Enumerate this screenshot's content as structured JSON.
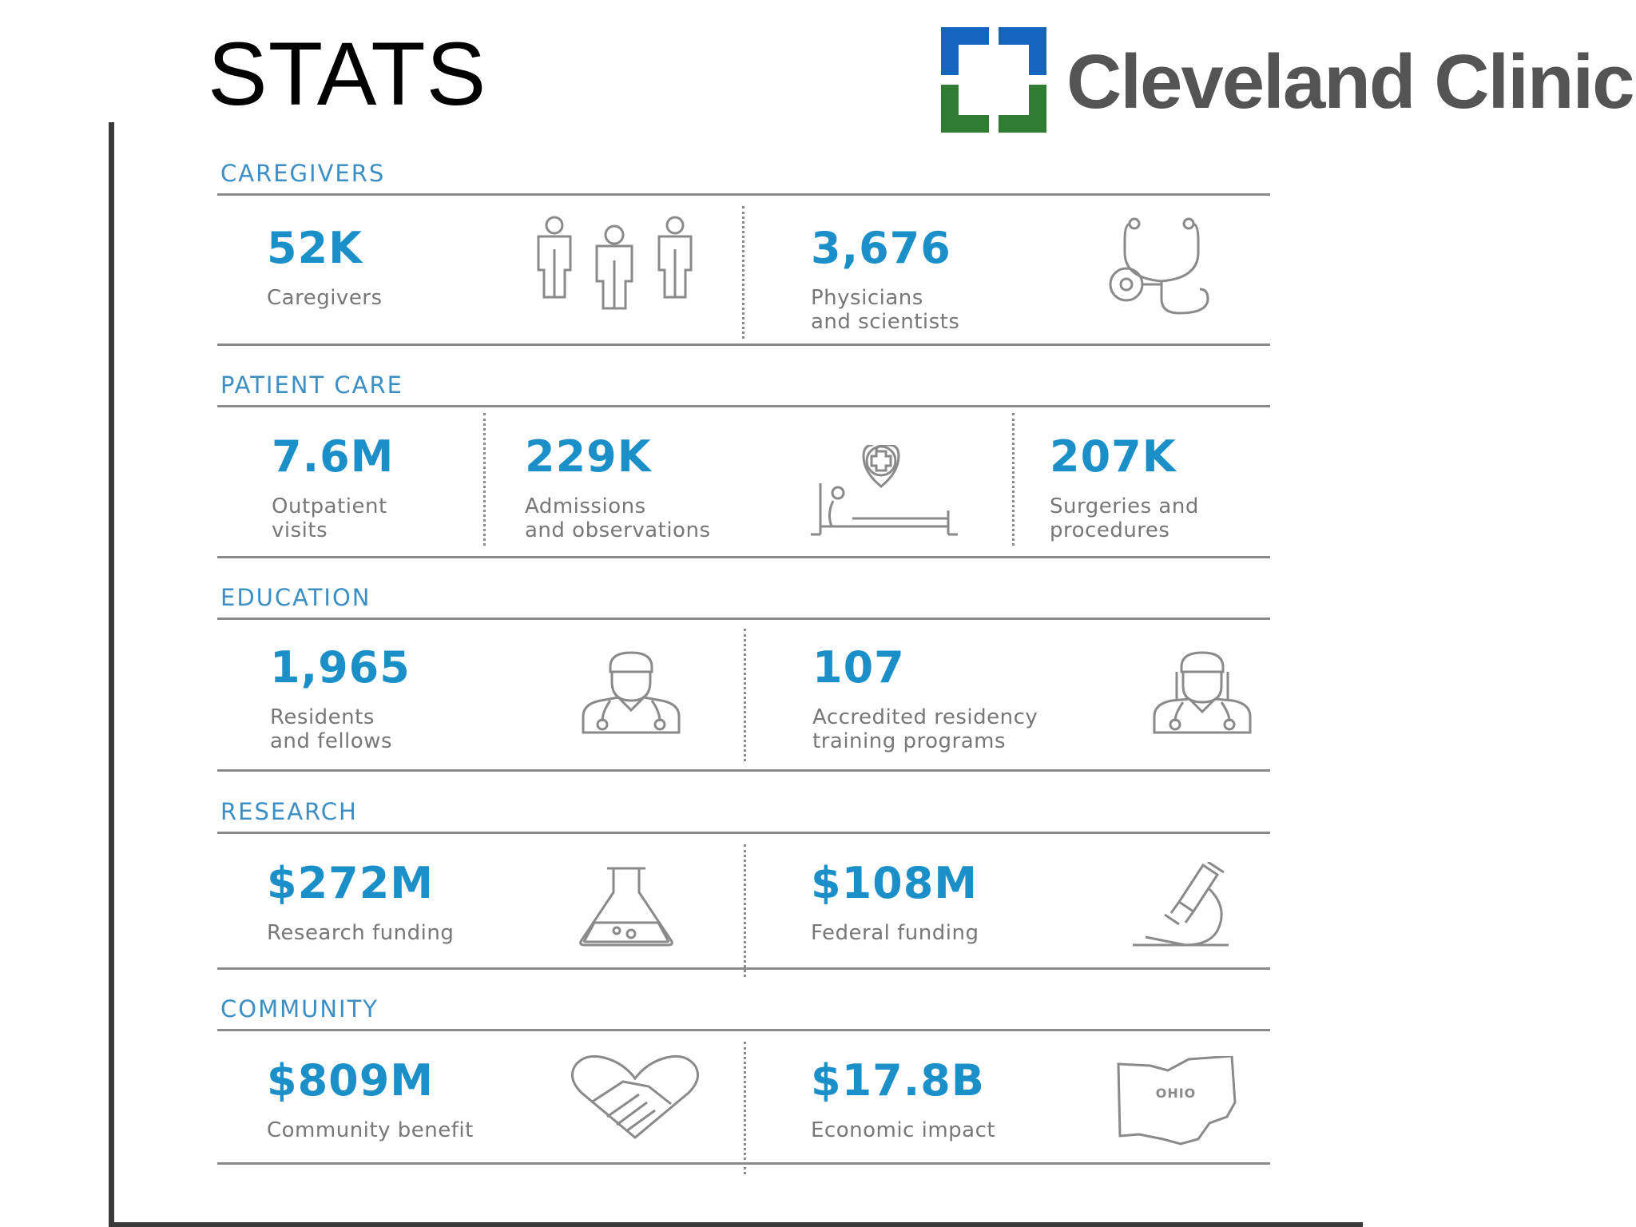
{
  "slide": {
    "title": "STATS"
  },
  "brand": {
    "name": "Cleveland Clinic",
    "colors": {
      "blue": "#1565c0",
      "green": "#2e7d32",
      "text": "#545454"
    }
  },
  "accent_color": "#1b8fc8",
  "sections": [
    {
      "label": "CAREGIVERS",
      "stats": [
        {
          "value": "52K",
          "label": "Caregivers",
          "icon": "people-icon"
        },
        {
          "value": "3,676",
          "label": "Physicians\nand scientists",
          "icon": "stethoscope-icon"
        }
      ]
    },
    {
      "label": "PATIENT CARE",
      "stats": [
        {
          "value": "7.6M",
          "label": "Outpatient\nvisits"
        },
        {
          "value": "229K",
          "label": "Admissions\nand observations",
          "icon": "hospital-bed-icon"
        },
        {
          "value": "207K",
          "label": "Surgeries and\nprocedures"
        }
      ]
    },
    {
      "label": "EDUCATION",
      "stats": [
        {
          "value": "1,965",
          "label": "Residents\nand fellows",
          "icon": "doctor-icon"
        },
        {
          "value": "107",
          "label": "Accredited residency\ntraining programs",
          "icon": "doctor-female-icon"
        }
      ]
    },
    {
      "label": "RESEARCH",
      "stats": [
        {
          "value": "$272M",
          "label": "Research funding",
          "icon": "flask-icon"
        },
        {
          "value": "$108M",
          "label": "Federal funding",
          "icon": "microscope-icon"
        }
      ]
    },
    {
      "label": "COMMUNITY",
      "stats": [
        {
          "value": "$809M",
          "label": "Community benefit",
          "icon": "handshake-heart-icon"
        },
        {
          "value": "$17.8B",
          "label": "Economic impact",
          "icon": "ohio-map-icon",
          "icon_text": "OHIO"
        }
      ]
    }
  ]
}
